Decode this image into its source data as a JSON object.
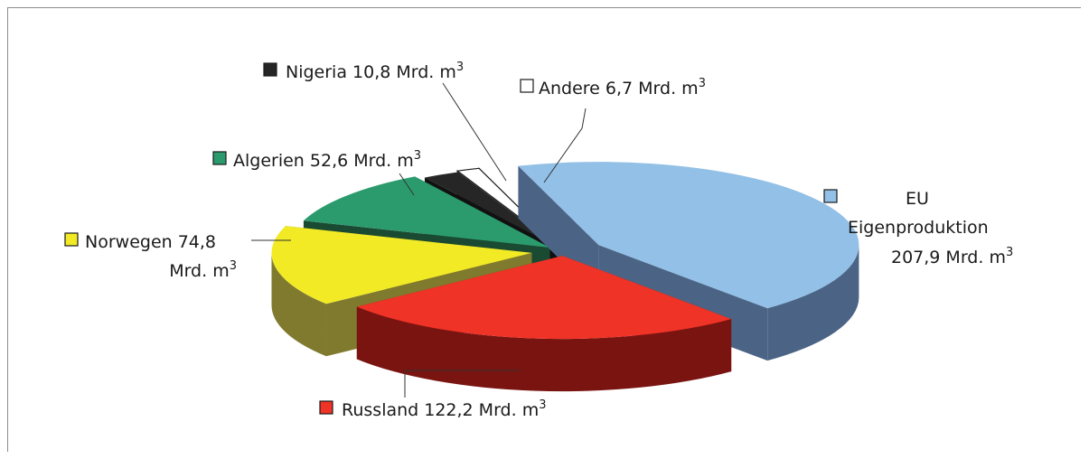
{
  "chart_data": {
    "type": "pie",
    "style": "3d-exploded",
    "title": "",
    "unit": "Mrd. m³",
    "slices": [
      {
        "key": "eu",
        "label_lines": [
          "EU",
          "Eigenproduktion",
          "207,9 Mrd. m"
        ],
        "value": 207.9,
        "value_text": "207,9",
        "top": "#92c0e6",
        "side": "#4b6485"
      },
      {
        "key": "russland",
        "label_lines": [
          "Russland 122,2 Mrd. m"
        ],
        "value": 122.2,
        "value_text": "122,2",
        "top": "#ef3326",
        "side": "#7a1411"
      },
      {
        "key": "norwegen",
        "label_lines": [
          "Norwegen 74,8",
          "Mrd. m"
        ],
        "value": 74.8,
        "value_text": "74,8",
        "top": "#f1ea25",
        "side": "#807a2e"
      },
      {
        "key": "algerien",
        "label_lines": [
          "Algerien 52,6 Mrd. m"
        ],
        "value": 52.6,
        "value_text": "52,6",
        "top": "#2b9b6e",
        "side": "#1a4a32"
      },
      {
        "key": "nigeria",
        "label_lines": [
          "Nigeria 10,8 Mrd. m"
        ],
        "value": 10.8,
        "value_text": "10,8",
        "top": "#262626",
        "side": "#111111"
      },
      {
        "key": "andere",
        "label_lines": [
          "Andere 6,7 Mrd. m"
        ],
        "value": 6.7,
        "value_text": "6,7",
        "top": "#ffffff",
        "side": "#a8a8a8"
      }
    ],
    "superscript": "3",
    "legend": "inline-labels"
  }
}
